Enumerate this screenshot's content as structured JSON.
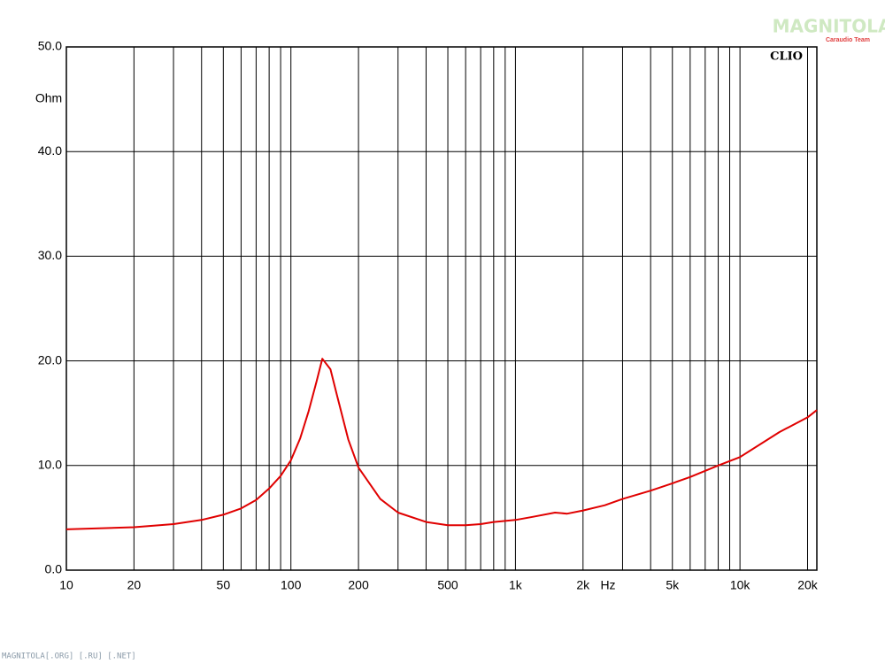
{
  "chart_data": {
    "type": "line",
    "brand": "CLIO",
    "x_unit": "Hz",
    "y_unit": "Ohm",
    "logo": "MAGNITOLA",
    "logo_sub": "Caraudio Team",
    "footer": "MAGNITOLA[.ORG] [.RU] [.NET]",
    "xscale": "log",
    "grid": true,
    "xlim": [
      10,
      22000
    ],
    "ylim": [
      0,
      50
    ],
    "xticks": [
      10,
      20,
      50,
      100,
      200,
      500,
      {
        "value": 1000,
        "label": "1k"
      },
      {
        "value": 2000,
        "label": "2k"
      },
      {
        "value": 5000,
        "label": "5k"
      },
      {
        "value": 10000,
        "label": "10k"
      },
      {
        "value": 20000,
        "label": "20k"
      }
    ],
    "xminor": [
      30,
      40,
      60,
      70,
      80,
      90,
      300,
      400,
      600,
      700,
      800,
      900,
      3000,
      4000,
      6000,
      7000,
      8000,
      9000
    ],
    "yticks": [
      {
        "value": 0,
        "label": "0.0"
      },
      {
        "value": 10,
        "label": "10.0"
      },
      {
        "value": 20,
        "label": "20.0"
      },
      {
        "value": 30,
        "label": "30.0"
      },
      {
        "value": 40,
        "label": "40.0"
      },
      {
        "value": 50,
        "label": "50.0"
      }
    ],
    "series": [
      {
        "color": "#e00000",
        "x": [
          10,
          20,
          30,
          40,
          50,
          60,
          70,
          80,
          90,
          100,
          110,
          120,
          130,
          138,
          150,
          160,
          180,
          200,
          250,
          300,
          400,
          500,
          600,
          700,
          800,
          900,
          1000,
          1200,
          1500,
          1700,
          2000,
          2500,
          3000,
          4000,
          5000,
          6000,
          8000,
          10000,
          15000,
          20000,
          22000
        ],
        "values": [
          3.9,
          4.1,
          4.4,
          4.8,
          5.3,
          5.9,
          6.7,
          7.8,
          9.0,
          10.5,
          12.6,
          15.2,
          18.0,
          20.2,
          19.2,
          16.8,
          12.5,
          9.8,
          6.8,
          5.5,
          4.6,
          4.3,
          4.3,
          4.4,
          4.6,
          4.7,
          4.8,
          5.1,
          5.5,
          5.4,
          5.7,
          6.2,
          6.8,
          7.6,
          8.3,
          8.9,
          10.0,
          10.8,
          13.2,
          14.6,
          15.3
        ]
      }
    ]
  }
}
